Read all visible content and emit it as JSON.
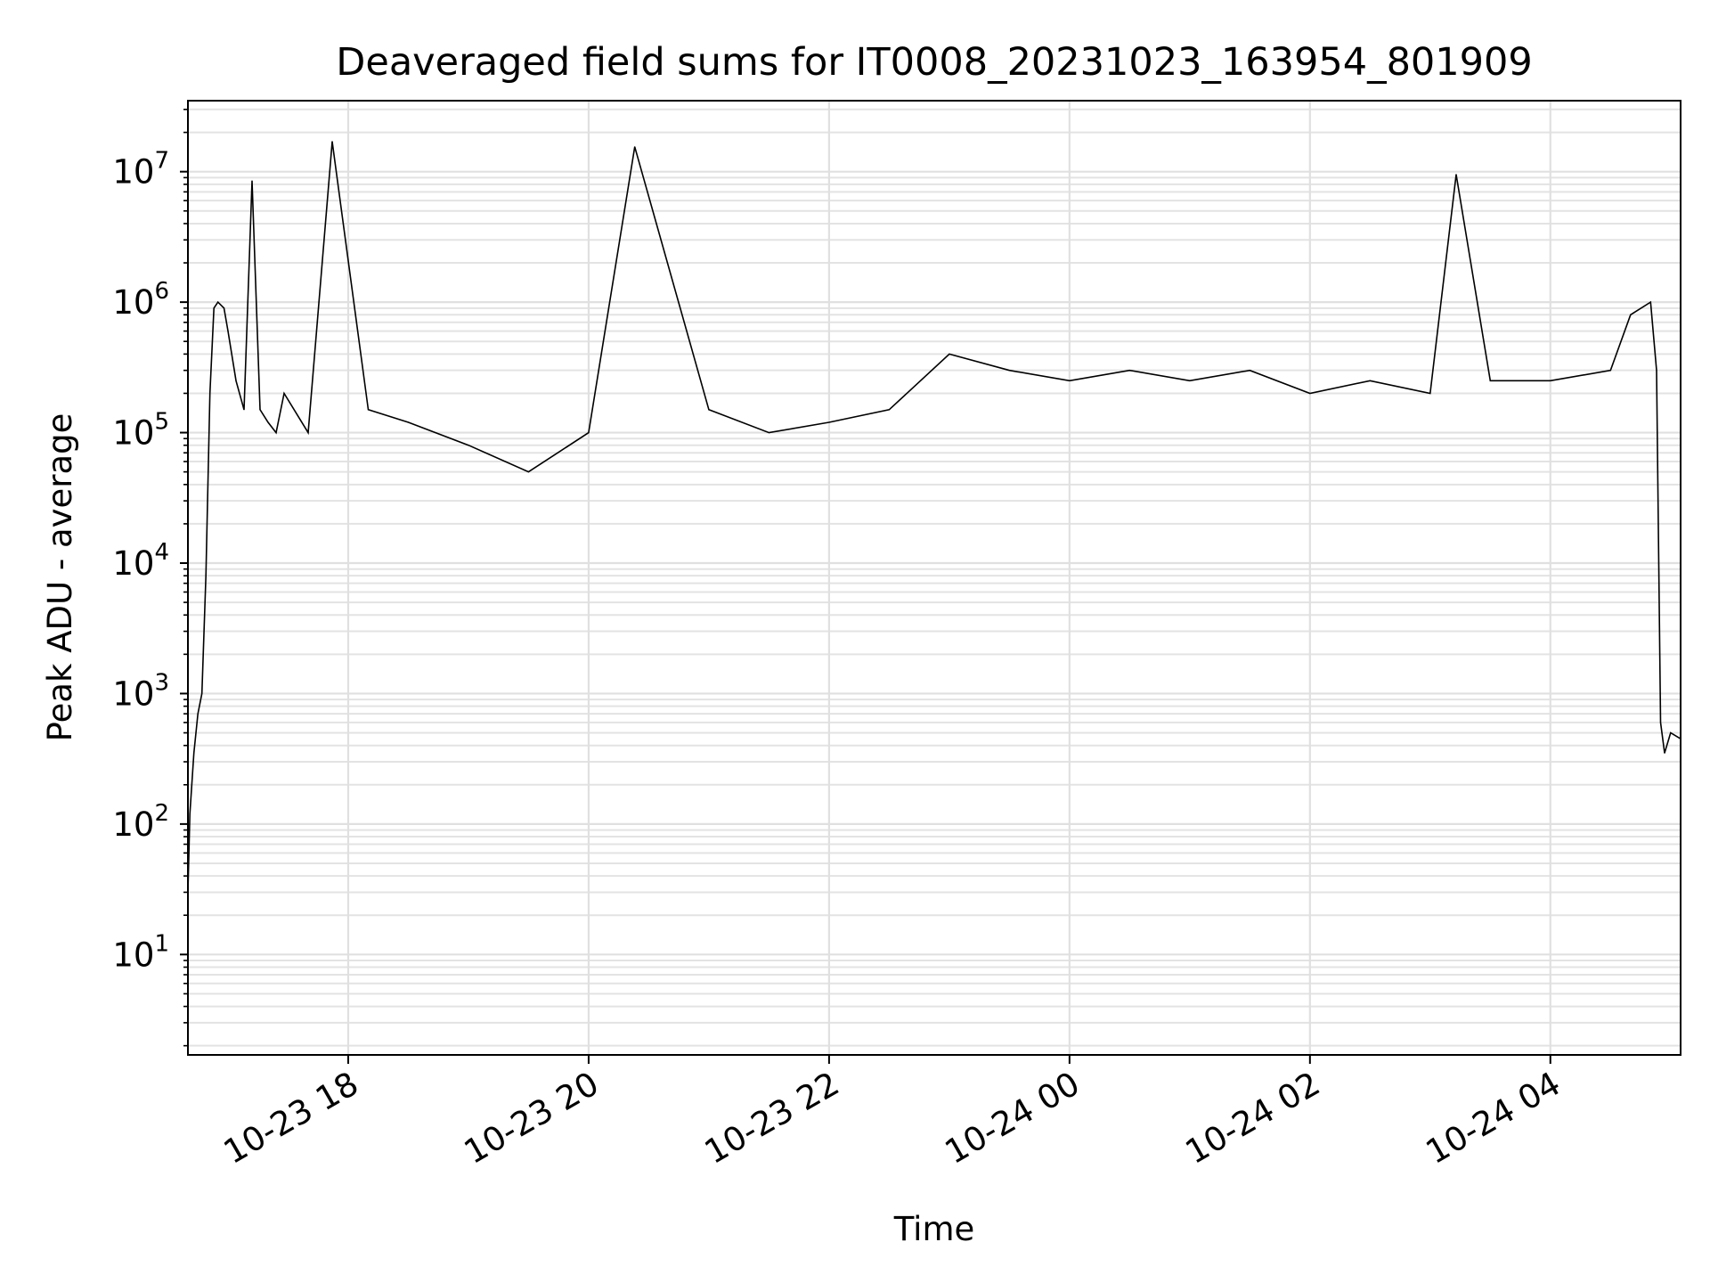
{
  "chart_data": {
    "type": "line",
    "title": "Deaveraged field sums for IT0008_20231023_163954_801909",
    "xlabel": "Time",
    "ylabel": "Peak ADU - average",
    "xlim": [
      "2023-10-23 16:40",
      "2023-10-24 05:05"
    ],
    "ylim": [
      1.7,
      35000000
    ],
    "yscale": "log",
    "grid": true,
    "legend": "none",
    "line_color": "#000000",
    "x_ticks": [
      "10-23 18",
      "10-23 20",
      "10-23 22",
      "10-24 00",
      "10-24 02",
      "10-24 04"
    ],
    "y_ticks": [
      {
        "base": "10",
        "exp": "1"
      },
      {
        "base": "10",
        "exp": "2"
      },
      {
        "base": "10",
        "exp": "3"
      },
      {
        "base": "10",
        "exp": "4"
      },
      {
        "base": "10",
        "exp": "5"
      },
      {
        "base": "10",
        "exp": "6"
      },
      {
        "base": "10",
        "exp": "7"
      }
    ],
    "series": [
      {
        "x": [
          "2023-10-23 16:40",
          "2023-10-23 16:41",
          "2023-10-23 16:43",
          "2023-10-23 16:45",
          "2023-10-23 16:47",
          "2023-10-23 16:49",
          "2023-10-23 16:51",
          "2023-10-23 16:53",
          "2023-10-23 16:55",
          "2023-10-23 16:58",
          "2023-10-23 17:00",
          "2023-10-23 17:04",
          "2023-10-23 17:08",
          "2023-10-23 17:12",
          "2023-10-23 17:16",
          "2023-10-23 17:20",
          "2023-10-23 17:24",
          "2023-10-23 17:28",
          "2023-10-23 17:40",
          "2023-10-23 17:52",
          "2023-10-23 18:10",
          "2023-10-23 18:30",
          "2023-10-23 19:00",
          "2023-10-23 19:30",
          "2023-10-23 20:00",
          "2023-10-23 20:23",
          "2023-10-23 21:00",
          "2023-10-23 21:30",
          "2023-10-23 22:00",
          "2023-10-23 22:30",
          "2023-10-23 23:00",
          "2023-10-23 23:30",
          "2023-10-24 00:00",
          "2023-10-24 00:30",
          "2023-10-24 01:00",
          "2023-10-24 01:30",
          "2023-10-24 02:00",
          "2023-10-24 02:30",
          "2023-10-24 03:00",
          "2023-10-24 03:13",
          "2023-10-24 03:30",
          "2023-10-24 04:00",
          "2023-10-24 04:30",
          "2023-10-24 04:40",
          "2023-10-24 04:50",
          "2023-10-24 04:53",
          "2023-10-24 04:55",
          "2023-10-24 04:57",
          "2023-10-24 05:00",
          "2023-10-24 05:05"
        ],
        "y": [
          30,
          120,
          350,
          700,
          1000,
          8000,
          200000,
          900000,
          1000000,
          900000,
          600000,
          250000,
          150000,
          8500000,
          150000,
          120000,
          100000,
          200000,
          100000,
          17000000,
          150000,
          120000,
          80000,
          50000,
          100000,
          15500000,
          150000,
          100000,
          120000,
          150000,
          400000,
          300000,
          250000,
          300000,
          250000,
          300000,
          200000,
          250000,
          200000,
          9500000,
          250000,
          250000,
          300000,
          800000,
          1000000,
          300000,
          600,
          350,
          500,
          450
        ]
      }
    ]
  }
}
